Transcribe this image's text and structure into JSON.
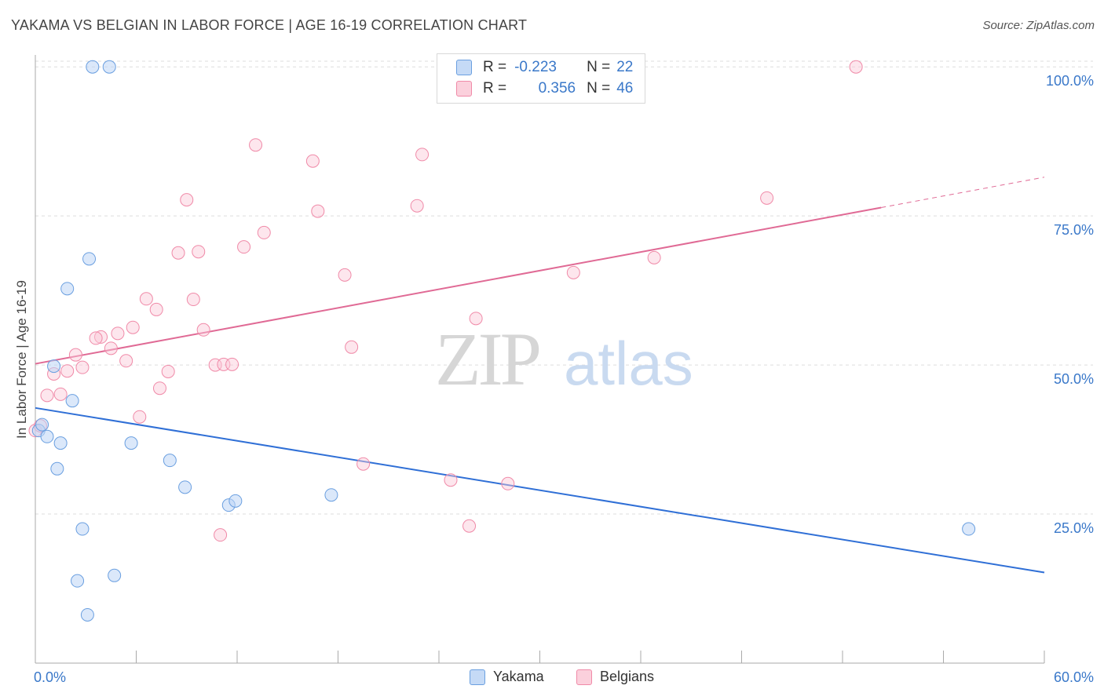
{
  "title": "YAKAMA VS BELGIAN IN LABOR FORCE | AGE 16-19 CORRELATION CHART",
  "source": "Source: ZipAtlas.com",
  "watermark": {
    "zip": "ZIP",
    "atlas": "atlas"
  },
  "legend": {
    "rows": [
      {
        "r_label": "R =",
        "r_value": "-0.223",
        "n_label": "N =",
        "n_value": "22"
      },
      {
        "r_label": "R =",
        "r_value": "0.356",
        "n_label": "N =",
        "n_value": "46"
      }
    ]
  },
  "bottom_legend": {
    "yakama": "Yakama",
    "belgians": "Belgians"
  },
  "chart_data": {
    "type": "scatter",
    "title": "YAKAMA VS BELGIAN IN LABOR FORCE | AGE 16-19 CORRELATION CHART",
    "xlabel": "",
    "ylabel": "In Labor Force | Age 16-19",
    "xlim": [
      0,
      60
    ],
    "ylim": [
      0,
      102
    ],
    "x_tick_labels": [
      "0.0%",
      "60.0%"
    ],
    "y_ticks": [
      25,
      50,
      75,
      100
    ],
    "y_tick_labels": [
      "25.0%",
      "50.0%",
      "75.0%",
      "100.0%"
    ],
    "colors": {
      "yakama": "#6a9fe0",
      "belgians": "#f08aa8",
      "yakama_line": "#2f6fd6",
      "belgians_line": "#e06a95"
    },
    "series": [
      {
        "name": "Yakama",
        "points": [
          [
            3.4,
            100
          ],
          [
            4.4,
            100
          ],
          [
            3.2,
            67.8
          ],
          [
            1.9,
            62.8
          ],
          [
            1.1,
            49.8
          ],
          [
            2.2,
            44
          ],
          [
            0.2,
            39
          ],
          [
            0.4,
            40
          ],
          [
            0.7,
            38
          ],
          [
            1.5,
            36.9
          ],
          [
            1.3,
            32.6
          ],
          [
            5.7,
            36.9
          ],
          [
            8.0,
            34
          ],
          [
            8.9,
            29.5
          ],
          [
            11.5,
            26.5
          ],
          [
            11.9,
            27.2
          ],
          [
            17.6,
            28.2
          ],
          [
            2.8,
            22.5
          ],
          [
            2.5,
            13.8
          ],
          [
            4.7,
            14.7
          ],
          [
            3.1,
            8.1
          ],
          [
            55.5,
            22.5
          ]
        ],
        "trend": {
          "x0": 0,
          "y0": 42.8,
          "x1": 60,
          "y1": 15.2
        }
      },
      {
        "name": "Belgians",
        "points": [
          [
            48.8,
            100
          ],
          [
            13.1,
            86.9
          ],
          [
            16.5,
            84.2
          ],
          [
            23.0,
            85.3
          ],
          [
            9.0,
            77.7
          ],
          [
            16.8,
            75.8
          ],
          [
            22.7,
            76.7
          ],
          [
            43.5,
            78.0
          ],
          [
            13.6,
            72.2
          ],
          [
            12.4,
            69.8
          ],
          [
            8.5,
            68.8
          ],
          [
            9.7,
            69.0
          ],
          [
            36.8,
            68.0
          ],
          [
            18.4,
            65.1
          ],
          [
            32.0,
            65.5
          ],
          [
            6.6,
            61.1
          ],
          [
            9.4,
            61.0
          ],
          [
            7.2,
            59.3
          ],
          [
            26.2,
            57.8
          ],
          [
            10.0,
            55.9
          ],
          [
            5.8,
            56.3
          ],
          [
            4.9,
            55.3
          ],
          [
            3.9,
            54.7
          ],
          [
            3.6,
            54.5
          ],
          [
            4.5,
            52.8
          ],
          [
            18.8,
            53.0
          ],
          [
            2.4,
            51.7
          ],
          [
            5.4,
            50.7
          ],
          [
            1.9,
            49.0
          ],
          [
            2.8,
            49.6
          ],
          [
            7.9,
            48.9
          ],
          [
            1.1,
            48.5
          ],
          [
            10.7,
            50.0
          ],
          [
            11.2,
            50.1
          ],
          [
            11.7,
            50.1
          ],
          [
            7.4,
            46.1
          ],
          [
            0.7,
            44.9
          ],
          [
            1.5,
            45.1
          ],
          [
            6.2,
            41.3
          ],
          [
            0.0,
            39.0
          ],
          [
            0.3,
            39.8
          ],
          [
            19.5,
            33.4
          ],
          [
            24.7,
            30.7
          ],
          [
            28.1,
            30.1
          ],
          [
            25.8,
            23.0
          ],
          [
            11.0,
            21.5
          ]
        ],
        "trend": {
          "x0": 0,
          "y0": 50.2,
          "x1": 50.3,
          "y1": 76.4,
          "dash_x1": 60,
          "dash_y1": 81.5
        }
      }
    ]
  }
}
